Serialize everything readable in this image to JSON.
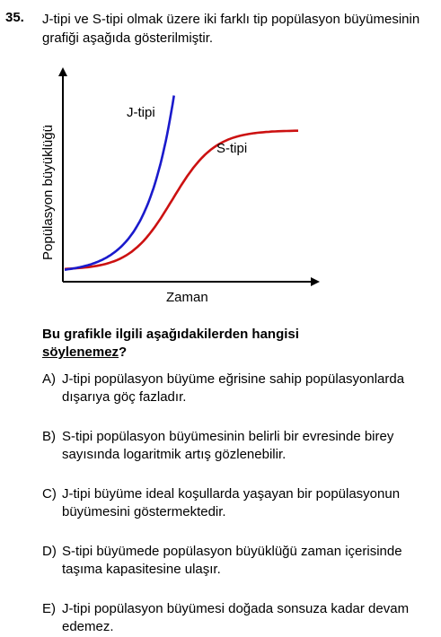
{
  "question": {
    "number": "35.",
    "stem": "J-tipi ve S-tipi olmak üzere iki farklı tip popülasyon büyümesinin grafiği aşağıda gösterilmiştir.",
    "prompt_main": "Bu grafikle ilgili aşağıdakilerden hangisi",
    "prompt_emphasis": "söylenemez",
    "prompt_end": "?"
  },
  "chart_data": {
    "type": "line",
    "title": "",
    "xlabel": "Zaman",
    "ylabel": "Popülasyon büyüklüğü",
    "grid": false,
    "series": [
      {
        "name": "J-tipi",
        "color": "#1a1acc",
        "shape": "exponential"
      },
      {
        "name": "S-tipi",
        "color": "#cc1111",
        "shape": "logistic"
      }
    ]
  },
  "options": [
    {
      "letter": "A)",
      "text": "J-tipi popülasyon büyüme eğrisine sahip popülasyonlarda dışarıya göç fazladır."
    },
    {
      "letter": "B)",
      "text": "S-tipi popülasyon büyümesinin belirli bir evresinde birey sayısında logaritmik artış gözlenebilir."
    },
    {
      "letter": "C)",
      "text": "J-tipi büyüme ideal koşullarda yaşayan bir popülasyonun büyümesini göstermektedir."
    },
    {
      "letter": "D)",
      "text": "S-tipi büyümede popülasyon büyüklüğü zaman içerisinde taşıma kapasitesine ulaşır."
    },
    {
      "letter": "E)",
      "text": "J-tipi popülasyon büyümesi doğada sonsuza kadar devam edemez."
    }
  ]
}
